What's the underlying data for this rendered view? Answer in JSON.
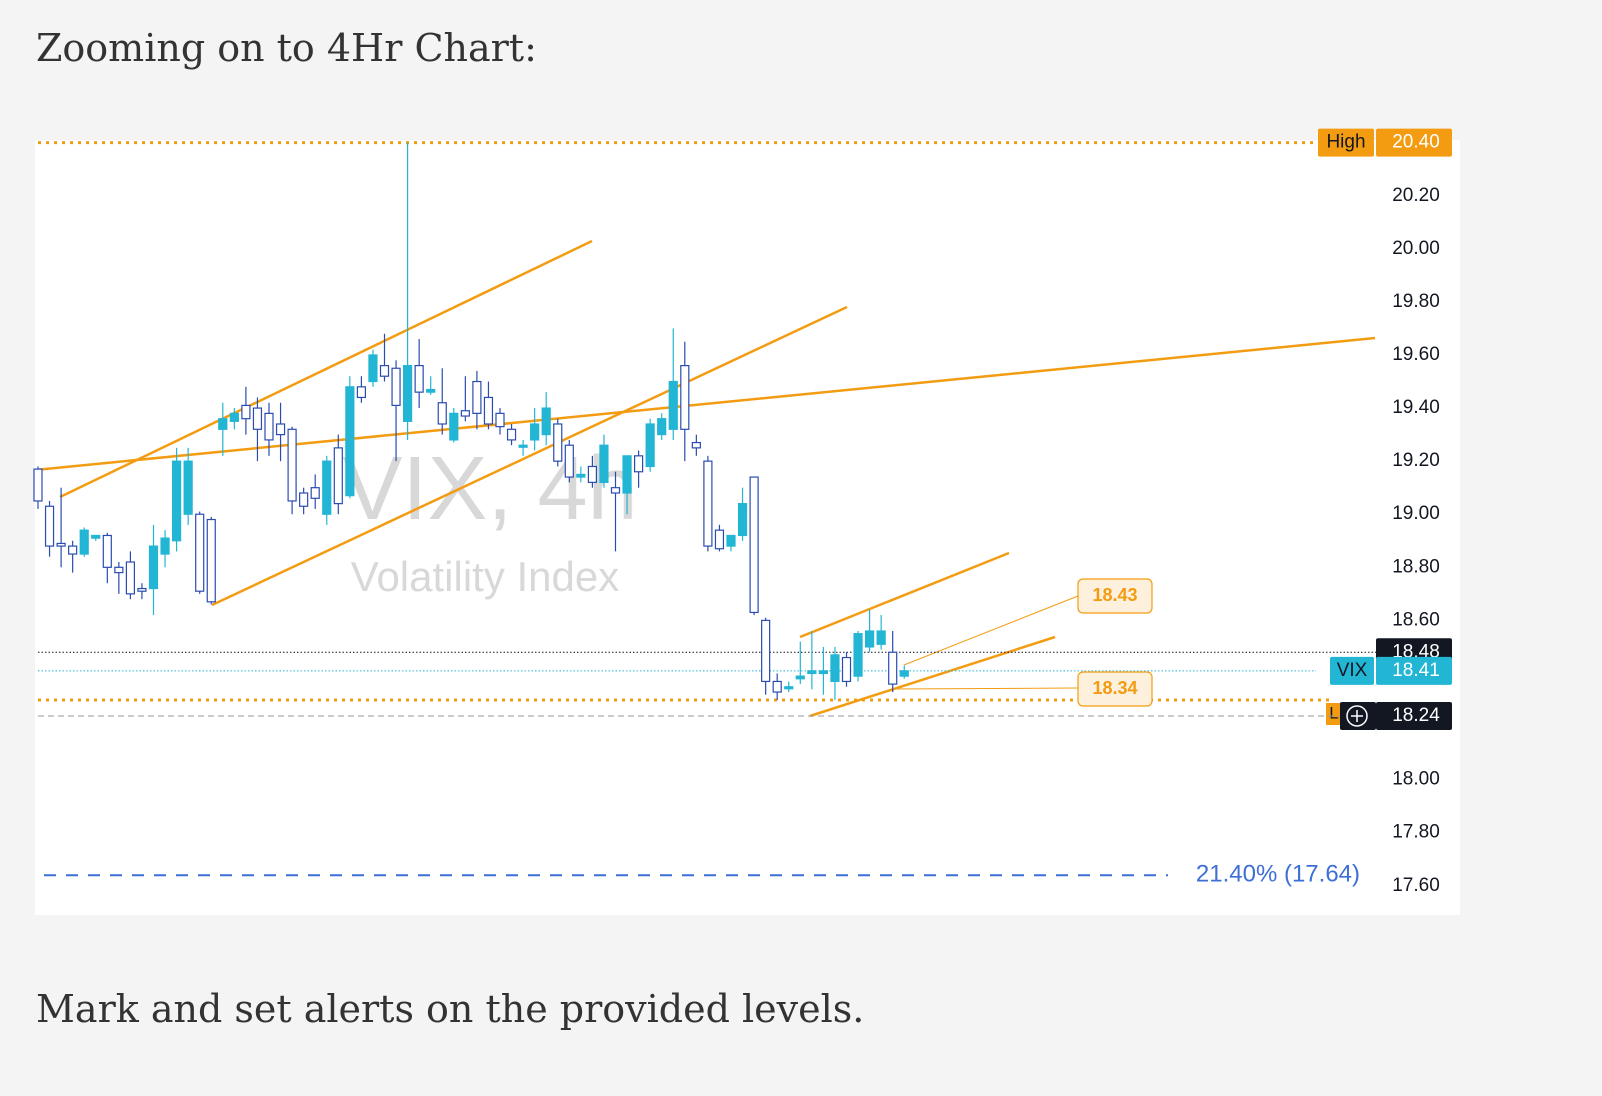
{
  "heading": "Zooming on to 4Hr Chart:",
  "caption": "Mark and set alerts on the provided levels.",
  "chart_data": {
    "type": "candlestick",
    "watermark": "VIX, 4h",
    "watermark_subtitle": "Volatility Index",
    "up_color": "#22b5d4",
    "down_color": "#2a4cb0",
    "ylim": [
      17.49,
      20.41
    ],
    "yticks": [
      {
        "value": 20.2,
        "label": "20.20"
      },
      {
        "value": 20.0,
        "label": "20.00"
      },
      {
        "value": 19.8,
        "label": "19.80"
      },
      {
        "value": 19.6,
        "label": "19.60"
      },
      {
        "value": 19.4,
        "label": "19.40"
      },
      {
        "value": 19.2,
        "label": "19.20"
      },
      {
        "value": 19.0,
        "label": "19.00"
      },
      {
        "value": 18.8,
        "label": "18.80"
      },
      {
        "value": 18.6,
        "label": "18.60"
      },
      {
        "value": 18.0,
        "label": "18.00"
      },
      {
        "value": 17.8,
        "label": "17.80"
      },
      {
        "value": 17.6,
        "label": "17.60"
      }
    ],
    "open": [
      19.17,
      19.03,
      18.89,
      18.88,
      18.85,
      18.91,
      18.92,
      18.8,
      18.82,
      18.72,
      18.72,
      18.85,
      18.9,
      19.0,
      19.0,
      18.98,
      19.32,
      19.35,
      19.41,
      19.4,
      19.38,
      19.34,
      19.32,
      19.08,
      19.1,
      19.0,
      19.25,
      19.07,
      19.48,
      19.5,
      19.56,
      19.55,
      19.35,
      19.56,
      19.46,
      19.42,
      19.28,
      19.39,
      19.5,
      19.44,
      19.38,
      19.32,
      19.26,
      19.28,
      19.3,
      19.34,
      19.26,
      19.14,
      19.18,
      19.12,
      19.1,
      19.08,
      19.22,
      19.18,
      19.3,
      19.32,
      19.56,
      19.27,
      19.2,
      18.94,
      18.88,
      18.92,
      19.14,
      18.6,
      18.37,
      18.35,
      18.38,
      18.4,
      18.4,
      18.37,
      18.46,
      18.39,
      18.5,
      18.51,
      18.48,
      18.39
    ],
    "high": [
      19.18,
      19.05,
      19.1,
      18.9,
      18.95,
      18.92,
      18.93,
      18.82,
      18.86,
      18.74,
      18.96,
      18.94,
      19.25,
      19.25,
      19.01,
      18.99,
      19.42,
      19.4,
      19.48,
      19.44,
      19.42,
      19.42,
      19.33,
      19.1,
      19.15,
      19.22,
      19.3,
      19.52,
      19.52,
      19.62,
      19.68,
      19.58,
      20.4,
      19.66,
      19.52,
      19.55,
      19.4,
      19.52,
      19.54,
      19.5,
      19.4,
      19.34,
      19.28,
      19.4,
      19.46,
      19.36,
      19.28,
      19.18,
      19.22,
      19.3,
      19.16,
      19.22,
      19.24,
      19.36,
      19.38,
      19.7,
      19.65,
      19.3,
      19.22,
      18.96,
      18.92,
      19.1,
      19.14,
      18.61,
      18.4,
      18.37,
      18.52,
      18.56,
      18.5,
      18.5,
      18.48,
      18.56,
      18.64,
      18.62,
      18.56,
      18.43
    ],
    "low": [
      19.02,
      18.84,
      18.8,
      18.78,
      18.84,
      18.9,
      18.74,
      18.7,
      18.68,
      18.68,
      18.62,
      18.8,
      18.86,
      18.96,
      18.7,
      18.66,
      19.22,
      19.32,
      19.3,
      19.2,
      19.22,
      19.2,
      19.0,
      19.0,
      19.02,
      18.96,
      19.0,
      19.06,
      19.42,
      19.48,
      19.5,
      19.2,
      19.28,
      19.4,
      19.45,
      19.3,
      19.27,
      19.35,
      19.32,
      19.32,
      19.3,
      19.26,
      19.22,
      19.24,
      19.26,
      19.18,
      19.12,
      19.12,
      19.1,
      19.1,
      18.86,
      19.0,
      19.1,
      19.16,
      19.28,
      19.28,
      19.2,
      19.22,
      18.86,
      18.86,
      18.86,
      18.9,
      18.62,
      18.32,
      18.3,
      18.33,
      18.36,
      18.34,
      18.32,
      18.3,
      18.35,
      18.37,
      18.48,
      18.49,
      18.33,
      18.38
    ],
    "close": [
      19.05,
      18.88,
      18.88,
      18.85,
      18.94,
      18.92,
      18.8,
      18.78,
      18.7,
      18.71,
      18.88,
      18.91,
      19.2,
      19.2,
      18.71,
      18.67,
      19.36,
      19.38,
      19.36,
      19.32,
      19.28,
      19.3,
      19.05,
      19.03,
      19.06,
      19.2,
      19.04,
      19.48,
      19.44,
      19.6,
      19.52,
      19.41,
      19.56,
      19.46,
      19.47,
      19.34,
      19.38,
      19.37,
      19.38,
      19.34,
      19.33,
      19.28,
      19.26,
      19.34,
      19.4,
      19.2,
      19.14,
      19.15,
      19.12,
      19.26,
      19.08,
      19.22,
      19.16,
      19.34,
      19.36,
      19.5,
      19.32,
      19.25,
      18.88,
      18.87,
      18.92,
      19.04,
      18.63,
      18.37,
      18.33,
      18.35,
      18.39,
      18.41,
      18.41,
      18.47,
      18.37,
      18.55,
      18.56,
      18.56,
      18.36,
      18.41
    ],
    "price_labels": [
      {
        "value": 20.4,
        "label": "20.40",
        "tag": "High",
        "color": "#f39c12",
        "line": "dotted-thick"
      },
      {
        "value": 18.48,
        "label": "18.48",
        "color": "#131722",
        "line": "dotted"
      },
      {
        "value": 18.41,
        "label": "18.41",
        "tag": "VIX",
        "color": "#22b5d4",
        "line": "dotted-light"
      },
      {
        "value": 18.24,
        "label": "18.24",
        "color": "#131722",
        "line": "dashed"
      }
    ],
    "low_tag": "L",
    "annotations": [
      18.43,
      18.34
    ],
    "fib_level": {
      "value": 17.64,
      "label": "21.40% (17.64)"
    }
  }
}
